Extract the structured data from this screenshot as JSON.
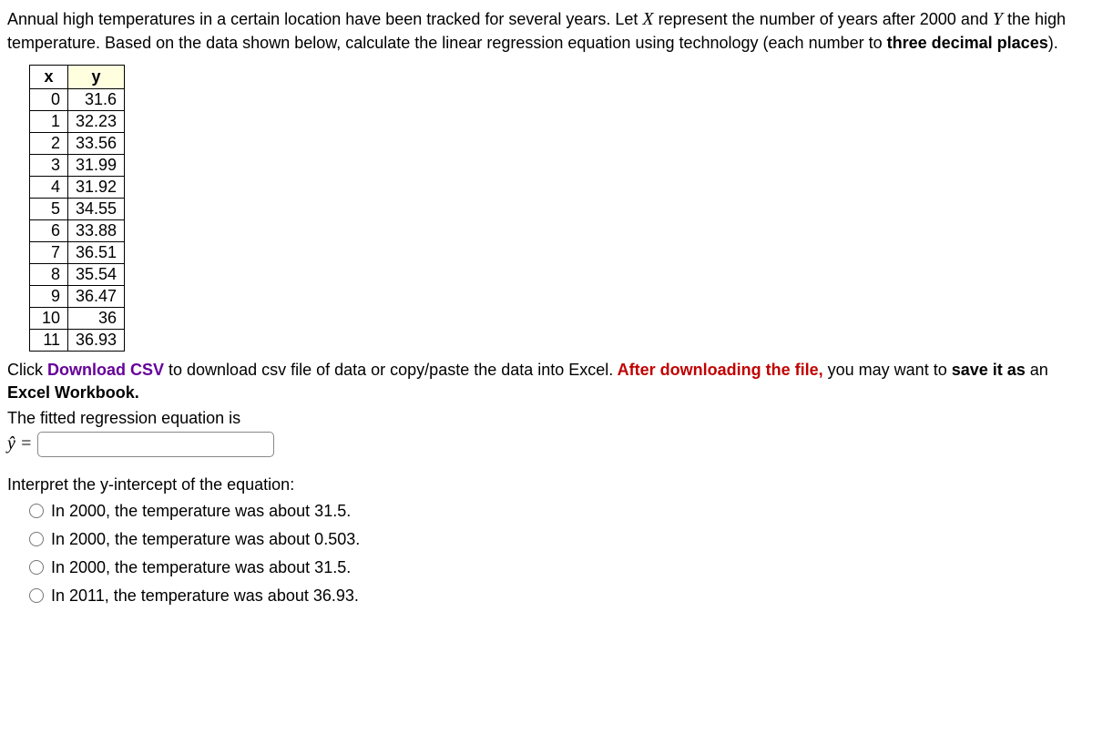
{
  "problem": {
    "line1_part1": "Annual high temperatures in a certain location have been tracked for several years. Let ",
    "X": "X",
    "line1_part2": " represent the number of years after 2000 and ",
    "Y": "Y",
    "line1_part3": " the high temperature. Based on the data shown below, calculate the linear regression equation using technology (each number to ",
    "bold_part": "three decimal places",
    "line1_end": ")."
  },
  "table": {
    "header_x": "x",
    "header_y": "y",
    "rows": [
      {
        "x": "0",
        "y": "31.6"
      },
      {
        "x": "1",
        "y": "32.23"
      },
      {
        "x": "2",
        "y": "33.56"
      },
      {
        "x": "3",
        "y": "31.99"
      },
      {
        "x": "4",
        "y": "31.92"
      },
      {
        "x": "5",
        "y": "34.55"
      },
      {
        "x": "6",
        "y": "33.88"
      },
      {
        "x": "7",
        "y": "36.51"
      },
      {
        "x": "8",
        "y": "35.54"
      },
      {
        "x": "9",
        "y": "36.47"
      },
      {
        "x": "10",
        "y": "36"
      },
      {
        "x": "11",
        "y": "36.93"
      }
    ]
  },
  "download": {
    "part1": "Click",
    "purple": " Download CSV",
    "part2": " to download csv file of data or copy/paste the data into Excel.",
    "red": " After downloading the file,",
    "part3": " you may want to",
    "bold": " save it as",
    "part4": " an",
    "bold2": " Excel Workbook."
  },
  "fitted": "The fitted regression equation is",
  "yhat": "ŷ =",
  "interpret": "Interpret the y-intercept of the equation:",
  "options": [
    "In 2000, the temperature was about 31.5.",
    "In 2000, the temperature was about 0.503.",
    "In 2000, the temperature was about 31.5.",
    "In 2011, the temperature was about 36.93."
  ]
}
